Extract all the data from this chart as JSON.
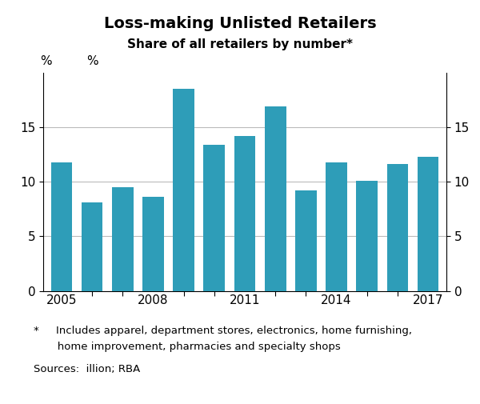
{
  "title": "Loss-making Unlisted Retailers",
  "subtitle": "Share of all retailers by number*",
  "years": [
    2005,
    2006,
    2007,
    2008,
    2009,
    2010,
    2011,
    2012,
    2013,
    2014,
    2015,
    2016,
    2017
  ],
  "values": [
    11.8,
    8.1,
    9.5,
    8.6,
    18.5,
    13.4,
    14.2,
    16.9,
    9.2,
    11.8,
    10.1,
    11.6,
    12.3
  ],
  "bar_color": "#2e9db8",
  "ylim": [
    0,
    20
  ],
  "yticks": [
    0,
    5,
    10,
    15
  ],
  "ylabel_left": "%",
  "ylabel_right": "%",
  "tick_years": [
    2005,
    2008,
    2011,
    2014,
    2017
  ],
  "footnote_star_line1": "*     Includes apparel, department stores, electronics, home furnishing,",
  "footnote_star_line2": "       home improvement, pharmacies and specialty shops",
  "footnote_sources": "Sources:  illion; RBA",
  "background_color": "#ffffff",
  "grid_color": "#bbbbbb"
}
